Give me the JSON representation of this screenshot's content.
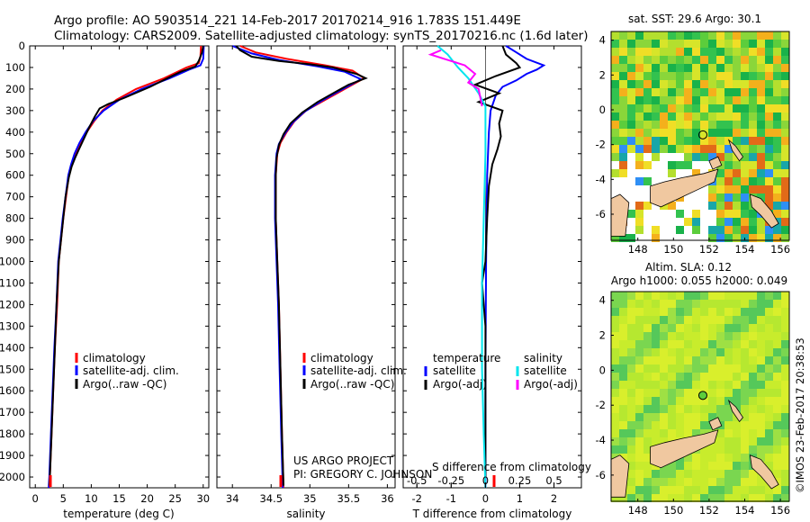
{
  "header": {
    "line1": "Argo profile: AO 5903514_221 14-Feb-2017 20170214_916 1.783S 151.449E",
    "line2": "Climatology: CARS2009. Satellite-adjusted climatology: synTS_20170216.nc (1.6d later)"
  },
  "colors": {
    "climatology": "#ff0000",
    "satellite": "#0000ff",
    "argo": "#000000",
    "salinity_satellite": "#00e5ee",
    "salinity_argo": "#ff00ff",
    "land": "#f0c8a0"
  },
  "chart_data": [
    {
      "type": "line",
      "id": "temperature",
      "xlabel": "temperature (deg C)",
      "ylabel": "",
      "xlim": [
        -1,
        31
      ],
      "ylim": [
        2050,
        0
      ],
      "xticks": [
        "0",
        "5",
        "10",
        "15",
        "20",
        "25",
        "30"
      ],
      "yticks": [
        "0",
        "100",
        "200",
        "300",
        "400",
        "500",
        "600",
        "700",
        "800",
        "900",
        "1000",
        "1100",
        "1200",
        "1300",
        "1400",
        "1500",
        "1600",
        "1700",
        "1800",
        "1900",
        "2000"
      ],
      "legend": [
        "climatology",
        "satellite-adj. clim.",
        "Argo(..raw -QC)"
      ],
      "series": [
        {
          "name": "climatology",
          "color": "#ff0000",
          "points": [
            [
              29.6,
              0
            ],
            [
              29.5,
              50
            ],
            [
              29.2,
              80
            ],
            [
              27,
              100
            ],
            [
              23,
              150
            ],
            [
              18,
              200
            ],
            [
              14.5,
              250
            ],
            [
              12,
              300
            ],
            [
              10.5,
              350
            ],
            [
              9.2,
              400
            ],
            [
              8.1,
              450
            ],
            [
              7.2,
              500
            ],
            [
              6.5,
              550
            ],
            [
              6,
              600
            ],
            [
              5.5,
              700
            ],
            [
              5,
              800
            ],
            [
              4.6,
              900
            ],
            [
              4.2,
              1000
            ],
            [
              3.9,
              1200
            ],
            [
              3.5,
              1400
            ],
            [
              3.2,
              1600
            ],
            [
              2.9,
              1800
            ],
            [
              2.6,
              2000
            ],
            [
              2.5,
              2050
            ]
          ]
        },
        {
          "name": "satellite-adj. clim.",
          "color": "#0000ff",
          "points": [
            [
              30.1,
              0
            ],
            [
              30,
              60
            ],
            [
              29.5,
              90
            ],
            [
              27.5,
              110
            ],
            [
              24,
              150
            ],
            [
              19,
              200
            ],
            [
              15,
              250
            ],
            [
              12.2,
              300
            ],
            [
              10.3,
              350
            ],
            [
              9,
              400
            ],
            [
              7.9,
              450
            ],
            [
              7,
              500
            ],
            [
              6.4,
              550
            ],
            [
              5.9,
              600
            ],
            [
              5.4,
              700
            ],
            [
              4.9,
              800
            ],
            [
              4.5,
              900
            ],
            [
              4.1,
              1000
            ],
            [
              3.8,
              1200
            ],
            [
              3.4,
              1400
            ],
            [
              3.1,
              1600
            ],
            [
              2.8,
              1800
            ],
            [
              2.5,
              2000
            ],
            [
              2.4,
              2050
            ]
          ]
        },
        {
          "name": "Argo(..raw -QC)",
          "color": "#000000",
          "points": [
            [
              30,
              0
            ],
            [
              29.8,
              30
            ],
            [
              29.2,
              70
            ],
            [
              28.6,
              95
            ],
            [
              26,
              120
            ],
            [
              24,
              145
            ],
            [
              20.5,
              190
            ],
            [
              16,
              240
            ],
            [
              13,
              270
            ],
            [
              11.5,
              290
            ],
            [
              10.6,
              330
            ],
            [
              9.6,
              380
            ],
            [
              8.7,
              430
            ],
            [
              7.8,
              480
            ],
            [
              7.1,
              520
            ],
            [
              6.5,
              560
            ],
            [
              6,
              610
            ],
            [
              5.4,
              700
            ],
            [
              5,
              800
            ],
            [
              4.6,
              900
            ],
            [
              4.2,
              1000
            ],
            [
              3.8,
              1200
            ],
            [
              3.5,
              1400
            ],
            [
              3.2,
              1600
            ],
            [
              2.9,
              1800
            ],
            [
              2.6,
              2000
            ],
            [
              2.5,
              2040
            ]
          ]
        }
      ]
    },
    {
      "type": "line",
      "id": "salinity",
      "xlabel": "salinity",
      "xlim": [
        33.8,
        36.1
      ],
      "ylim": [
        2050,
        0
      ],
      "xticks": [
        "34",
        "34.5",
        "35",
        "35.5",
        "36"
      ],
      "legend": [
        "climatology",
        "satellite-adj. clim.",
        "Argo(..raw -QC)"
      ],
      "annotation": [
        "US ARGO PROJECT",
        "PI: GREGORY C. JOHNSON"
      ],
      "series": [
        {
          "name": "climatology",
          "color": "#ff0000",
          "points": [
            [
              34.1,
              0
            ],
            [
              34.3,
              30
            ],
            [
              34.7,
              60
            ],
            [
              35.2,
              90
            ],
            [
              35.55,
              115
            ],
            [
              35.7,
              150
            ],
            [
              35.45,
              200
            ],
            [
              35.2,
              250
            ],
            [
              34.95,
              300
            ],
            [
              34.8,
              350
            ],
            [
              34.7,
              400
            ],
            [
              34.62,
              450
            ],
            [
              34.58,
              500
            ],
            [
              34.56,
              600
            ],
            [
              34.56,
              800
            ],
            [
              34.58,
              1000
            ],
            [
              34.6,
              1200
            ],
            [
              34.62,
              1500
            ],
            [
              34.64,
              1800
            ],
            [
              34.66,
              2050
            ]
          ]
        },
        {
          "name": "satellite-adj. clim.",
          "color": "#0000ff",
          "points": [
            [
              34,
              0
            ],
            [
              34.25,
              35
            ],
            [
              34.6,
              65
            ],
            [
              35.1,
              95
            ],
            [
              35.45,
              120
            ],
            [
              35.66,
              155
            ],
            [
              35.4,
              205
            ],
            [
              35.15,
              255
            ],
            [
              34.93,
              305
            ],
            [
              34.78,
              355
            ],
            [
              34.68,
              405
            ],
            [
              34.6,
              455
            ],
            [
              34.57,
              500
            ],
            [
              34.55,
              600
            ],
            [
              34.55,
              800
            ],
            [
              34.57,
              1000
            ],
            [
              34.59,
              1200
            ],
            [
              34.61,
              1500
            ],
            [
              34.63,
              1800
            ],
            [
              34.65,
              2050
            ]
          ]
        },
        {
          "name": "Argo(..raw -QC)",
          "color": "#000000",
          "points": [
            [
              34.05,
              0
            ],
            [
              34.1,
              20
            ],
            [
              34.25,
              50
            ],
            [
              34.6,
              70
            ],
            [
              35.0,
              85
            ],
            [
              35.3,
              100
            ],
            [
              35.6,
              130
            ],
            [
              35.72,
              150
            ],
            [
              35.5,
              180
            ],
            [
              35.35,
              210
            ],
            [
              35.1,
              260
            ],
            [
              34.9,
              310
            ],
            [
              34.75,
              360
            ],
            [
              34.66,
              410
            ],
            [
              34.6,
              460
            ],
            [
              34.57,
              520
            ],
            [
              34.56,
              600
            ],
            [
              34.56,
              800
            ],
            [
              34.58,
              1000
            ],
            [
              34.6,
              1200
            ],
            [
              34.62,
              1500
            ],
            [
              34.64,
              1800
            ],
            [
              34.66,
              2040
            ]
          ]
        }
      ]
    },
    {
      "type": "line",
      "id": "difference",
      "xlabel": "T difference from climatology",
      "xlabel_top": "S difference from climatology",
      "xlim": [
        -2.4,
        2.8
      ],
      "ylim": [
        2050,
        0
      ],
      "xticks": [
        "-2",
        "-1",
        "0",
        "1",
        "2"
      ],
      "sticks": [
        "-0.5",
        "-0.25",
        "0",
        "0.25",
        "0.5"
      ],
      "legend": {
        "temperature_head": "temperature",
        "salinity_head": "salinity",
        "items": [
          "satellite",
          "Argo(-adj)",
          "satellite",
          "Argo(-adj)"
        ]
      },
      "series": [
        {
          "name": "temperature satellite",
          "color": "#0000ff",
          "points": [
            [
              0.6,
              0
            ],
            [
              0.9,
              30
            ],
            [
              1.2,
              60
            ],
            [
              1.7,
              90
            ],
            [
              1.5,
              110
            ],
            [
              1.2,
              130
            ],
            [
              0.9,
              160
            ],
            [
              0.5,
              190
            ],
            [
              0.3,
              230
            ],
            [
              0.15,
              300
            ],
            [
              0.1,
              400
            ],
            [
              0.05,
              600
            ],
            [
              0.02,
              1000
            ],
            [
              0,
              1500
            ],
            [
              0,
              2050
            ]
          ]
        },
        {
          "name": "temperature Argo(-adj)",
          "color": "#000000",
          "points": [
            [
              0.5,
              0
            ],
            [
              0.6,
              40
            ],
            [
              0.9,
              80
            ],
            [
              1.0,
              100
            ],
            [
              0.3,
              140
            ],
            [
              -0.3,
              180
            ],
            [
              0.4,
              220
            ],
            [
              -0.2,
              260
            ],
            [
              0.5,
              300
            ],
            [
              0.4,
              360
            ],
            [
              0.45,
              420
            ],
            [
              0.35,
              480
            ],
            [
              0.2,
              550
            ],
            [
              0.1,
              650
            ],
            [
              0.05,
              800
            ],
            [
              0,
              1000
            ],
            [
              -0.1,
              1100
            ],
            [
              0,
              1300
            ],
            [
              0,
              1600
            ],
            [
              0,
              2000
            ]
          ]
        },
        {
          "name": "salinity satellite",
          "color": "#00e5ee",
          "points": [
            [
              -1.4,
              0
            ],
            [
              -1.1,
              40
            ],
            [
              -0.9,
              80
            ],
            [
              -0.8,
              100
            ],
            [
              -0.5,
              150
            ],
            [
              -0.2,
              220
            ],
            [
              0,
              280
            ],
            [
              0,
              500
            ],
            [
              -0.05,
              800
            ],
            [
              -0.1,
              1100
            ],
            [
              -0.1,
              1500
            ],
            [
              -0.05,
              1800
            ],
            [
              0,
              2050
            ]
          ]
        },
        {
          "name": "salinity Argo(-adj)",
          "color": "#ff00ff",
          "points": [
            [
              -1.3,
              20
            ],
            [
              -1.6,
              40
            ],
            [
              -1.2,
              60
            ],
            [
              -0.6,
              90
            ],
            [
              -0.3,
              130
            ],
            [
              -0.5,
              170
            ],
            [
              -0.2,
              200
            ],
            [
              -0.1,
              280
            ]
          ]
        }
      ]
    }
  ],
  "maps": [
    {
      "title": "sat. SST: 29.6  Argo: 30.1",
      "xticks": [
        "148",
        "150",
        "152",
        "154",
        "156"
      ],
      "yticks": [
        "4",
        "2",
        "0",
        "-2",
        "-4",
        "-6"
      ]
    },
    {
      "title1": "Altim. SLA: 0.12",
      "title2": "Argo h1000: 0.055  h2000: 0.049",
      "xticks": [
        "148",
        "150",
        "152",
        "154",
        "156"
      ],
      "yticks": [
        "4",
        "2",
        "0",
        "-2",
        "-4",
        "-6"
      ]
    }
  ],
  "credit": "©IMOS 23-Feb-2017 20:38:53"
}
